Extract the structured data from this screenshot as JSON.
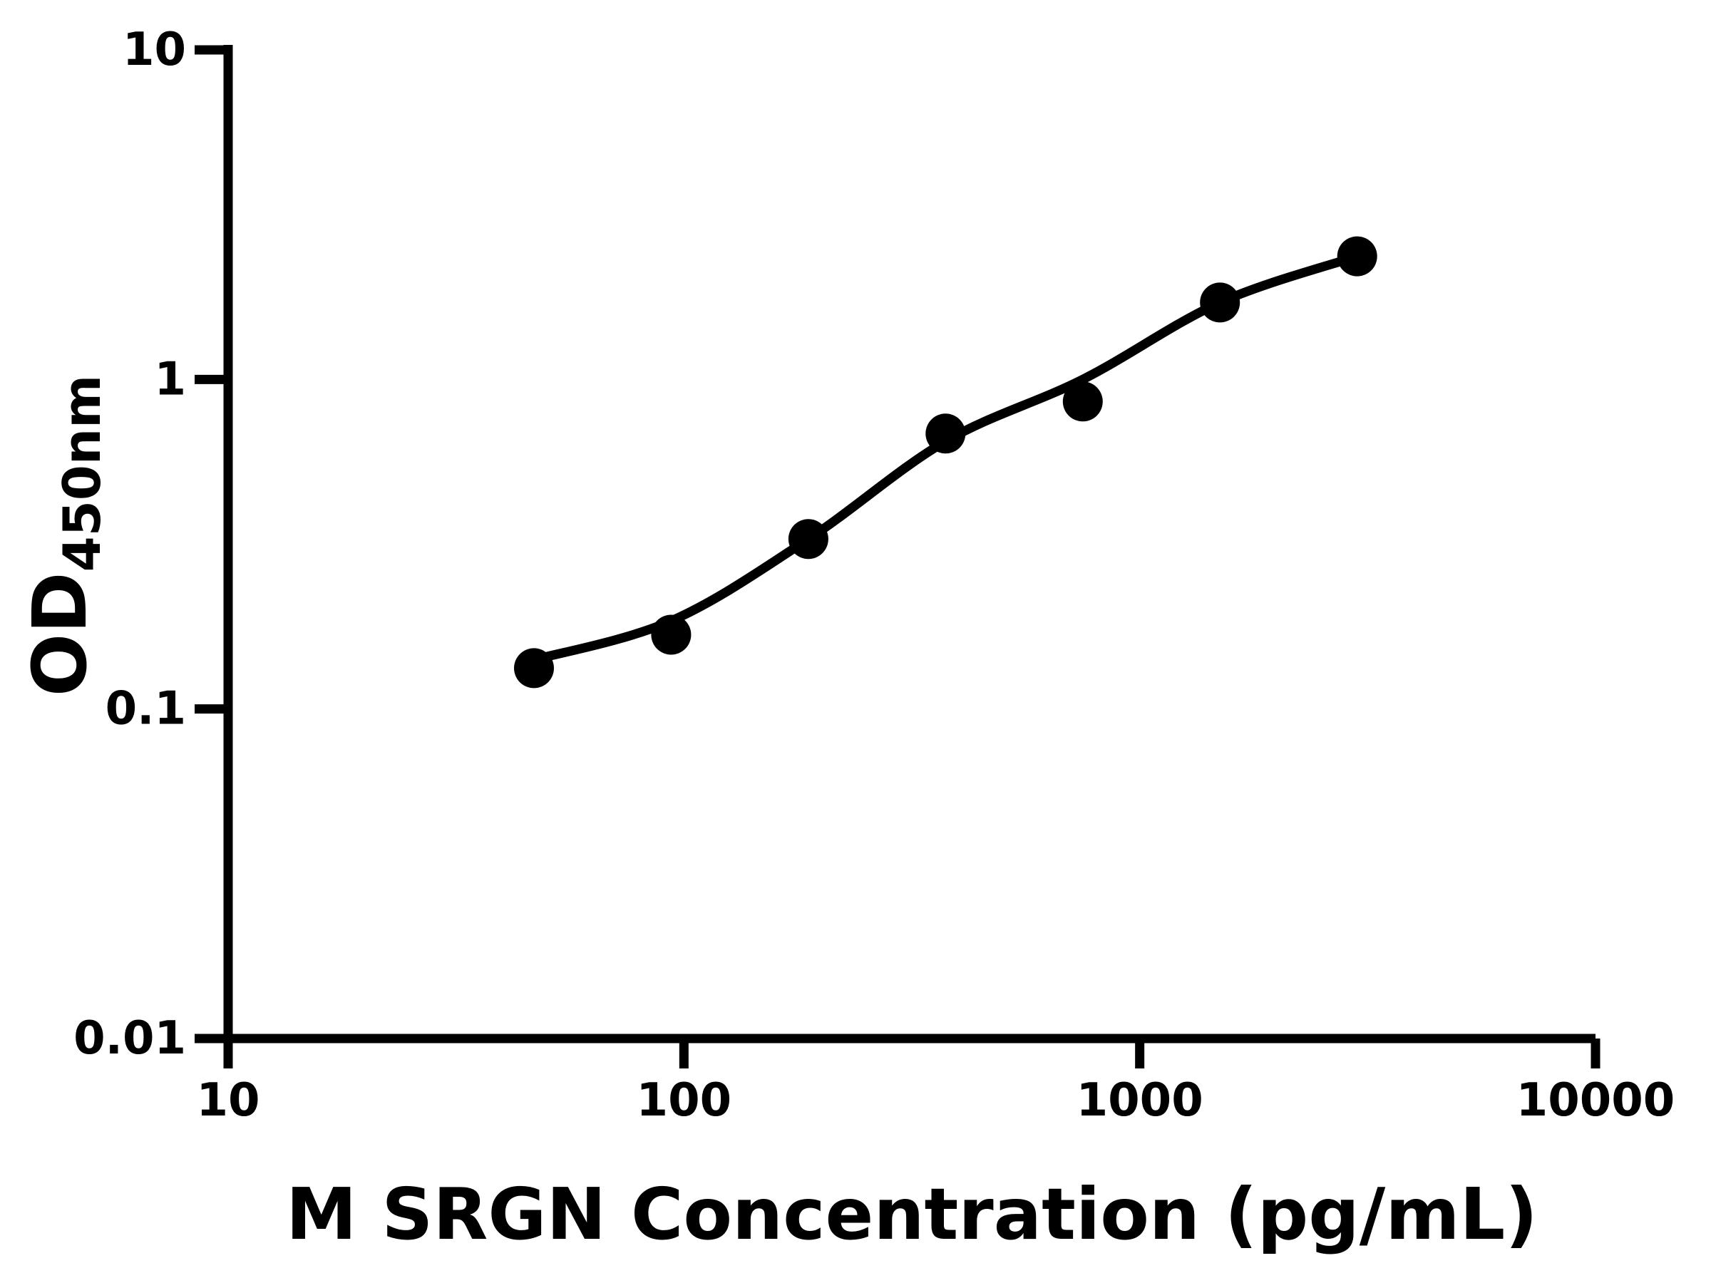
{
  "figure": {
    "background_color": "#ffffff",
    "ink_color": "#000000"
  },
  "chart_data": {
    "type": "scatter",
    "title": "",
    "xlabel": "M SRGN Concentration (pg/mL)",
    "ylabel_main": "OD",
    "ylabel_sub": "450nm",
    "x_scale": "log",
    "y_scale": "log",
    "xlim": [
      10,
      10000
    ],
    "ylim": [
      0.01,
      10
    ],
    "grid": "off",
    "legend": "none",
    "x_ticks": [
      {
        "value": 10,
        "label": "10"
      },
      {
        "value": 100,
        "label": "100"
      },
      {
        "value": 1000,
        "label": "1000"
      },
      {
        "value": 10000,
        "label": "10000"
      }
    ],
    "y_ticks": [
      {
        "value": 10,
        "label": "10"
      },
      {
        "value": 1,
        "label": "1"
      },
      {
        "value": 0.1,
        "label": "0.1"
      },
      {
        "value": 0.01,
        "label": "0.01"
      }
    ],
    "series": [
      {
        "name": "standard-points",
        "kind": "scatter",
        "marker": "circle",
        "x": [
          46.88,
          93.75,
          187.5,
          375,
          750,
          1500,
          3000
        ],
        "y": [
          0.133,
          0.168,
          0.328,
          0.685,
          0.857,
          1.712,
          2.364
        ]
      },
      {
        "name": "4pl-fit-curve",
        "kind": "line",
        "x": [
          46.88,
          93.75,
          187.5,
          375,
          750,
          1500,
          3000
        ],
        "y": [
          0.141,
          0.185,
          0.328,
          0.649,
          1.0,
          1.712,
          2.364
        ]
      }
    ]
  }
}
